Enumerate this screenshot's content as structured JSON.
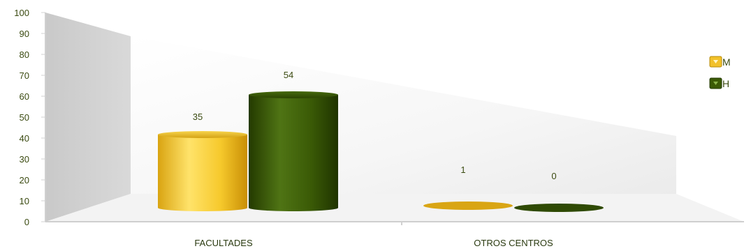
{
  "chart_data": {
    "type": "bar",
    "categories": [
      "FACULTADES",
      "OTROS CENTROS"
    ],
    "series": [
      {
        "name": "M",
        "values": [
          35,
          1
        ],
        "color": "#f2c12a"
      },
      {
        "name": "H",
        "values": [
          54,
          0
        ],
        "color": "#3b5a06"
      }
    ],
    "ylim": [
      0,
      100
    ],
    "yticks": [
      "0",
      "10",
      "20",
      "30",
      "40",
      "50",
      "60",
      "70",
      "80",
      "90",
      "100"
    ],
    "data_labels": {
      "M": [
        "35",
        "1"
      ],
      "H": [
        "54",
        "0"
      ]
    },
    "legend_position": "right",
    "style": "3d-cylinder"
  }
}
